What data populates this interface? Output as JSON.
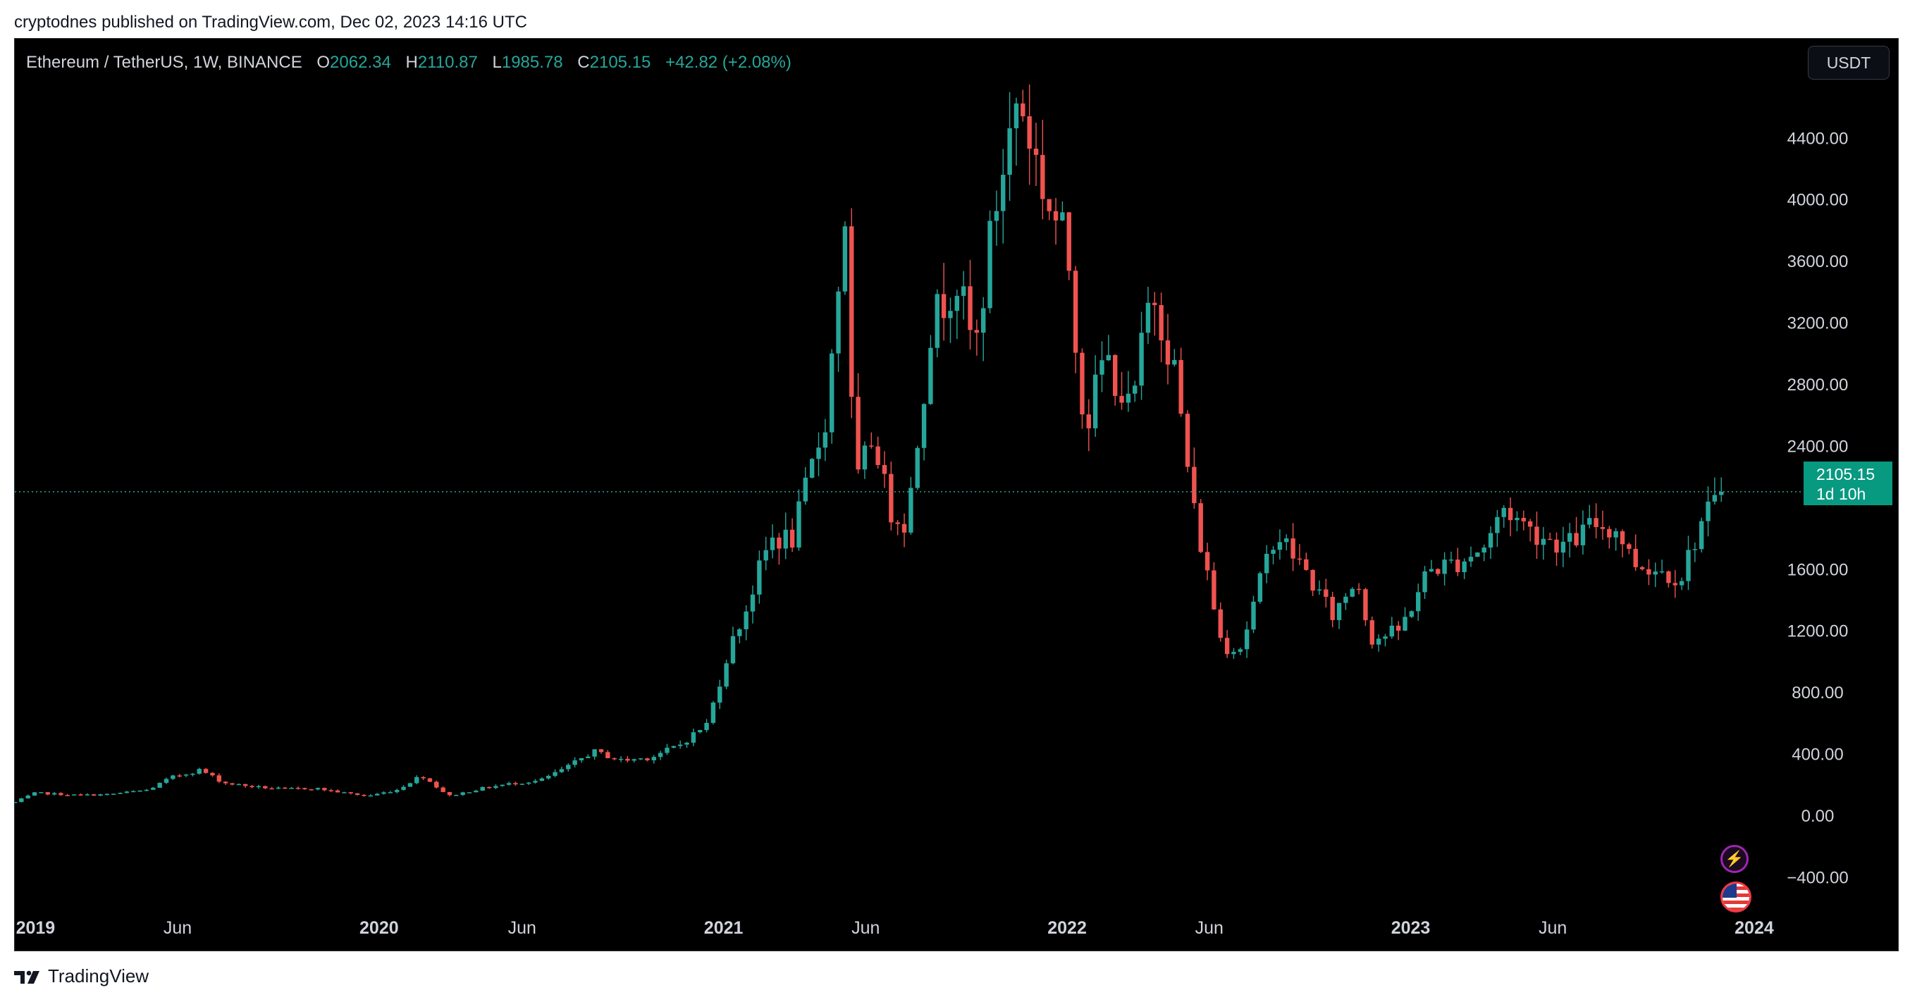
{
  "publish_line": "cryptodnes published on TradingView.com, Dec 02, 2023 14:16 UTC",
  "legend": {
    "symbol": "Ethereum / TetherUS, 1W, BINANCE",
    "o_label": "O",
    "o": "2062.34",
    "h_label": "H",
    "h": "2110.87",
    "l_label": "L",
    "l": "1985.78",
    "c_label": "C",
    "c": "2105.15",
    "change": "+42.82 (+2.08%)"
  },
  "currency_button": "USDT",
  "price_tag": {
    "price": "2105.15",
    "countdown": "1d 10h"
  },
  "brand": "TradingView",
  "colors": {
    "up": "#26a69a",
    "down": "#ef5350",
    "background": "#000000",
    "tag": "#089981"
  },
  "icons": [
    "lightning-icon",
    "us-flag-icon",
    "tradingview-logo-icon"
  ],
  "chart_data": {
    "type": "candlestick",
    "interval": "1W",
    "ylim": [
      -700,
      4900
    ],
    "y_ticks": [
      "4400.00",
      "4000.00",
      "3600.00",
      "3200.00",
      "2800.00",
      "2400.00",
      "1600.00",
      "1200.00",
      "800.00",
      "400.00",
      "0.00",
      "−400.00"
    ],
    "y_tick_values": [
      4400,
      4000,
      3600,
      3200,
      2800,
      2400,
      1600,
      1200,
      800,
      400,
      0,
      -400
    ],
    "x_labels": [
      {
        "text": "2019",
        "date": "2019-01-01",
        "bold": true
      },
      {
        "text": "Jun",
        "date": "2019-06-01",
        "bold": false
      },
      {
        "text": "2020",
        "date": "2020-01-01",
        "bold": true
      },
      {
        "text": "Jun",
        "date": "2020-06-01",
        "bold": false
      },
      {
        "text": "2021",
        "date": "2021-01-01",
        "bold": true
      },
      {
        "text": "Jun",
        "date": "2021-06-01",
        "bold": false
      },
      {
        "text": "2022",
        "date": "2022-01-01",
        "bold": true
      },
      {
        "text": "Jun",
        "date": "2022-06-01",
        "bold": false
      },
      {
        "text": "2023",
        "date": "2023-01-01",
        "bold": true
      },
      {
        "text": "Jun",
        "date": "2023-06-01",
        "bold": false
      },
      {
        "text": "2024",
        "date": "2024-01-01",
        "bold": true
      }
    ],
    "x_range": [
      "2018-12-10",
      "2024-01-10"
    ],
    "first_candle": "2018-12-10",
    "last_close": 2105.15,
    "close_anchors": [
      [
        "2018-12-10",
        90
      ],
      [
        "2019-01-01",
        150
      ],
      [
        "2019-02-15",
        135
      ],
      [
        "2019-03-20",
        140
      ],
      [
        "2019-05-01",
        170
      ],
      [
        "2019-05-25",
        250
      ],
      [
        "2019-06-25",
        300
      ],
      [
        "2019-07-20",
        215
      ],
      [
        "2019-08-20",
        190
      ],
      [
        "2019-09-20",
        175
      ],
      [
        "2019-10-25",
        180
      ],
      [
        "2019-11-25",
        150
      ],
      [
        "2019-12-20",
        130
      ],
      [
        "2020-01-20",
        170
      ],
      [
        "2020-02-15",
        265
      ],
      [
        "2020-03-15",
        130
      ],
      [
        "2020-04-20",
        180
      ],
      [
        "2020-05-20",
        210
      ],
      [
        "2020-06-20",
        230
      ],
      [
        "2020-07-20",
        320
      ],
      [
        "2020-08-15",
        420
      ],
      [
        "2020-09-15",
        360
      ],
      [
        "2020-10-15",
        380
      ],
      [
        "2020-11-15",
        460
      ],
      [
        "2020-12-15",
        600
      ],
      [
        "2021-01-05",
        1050
      ],
      [
        "2021-01-25",
        1350
      ],
      [
        "2021-02-20",
        1800
      ],
      [
        "2021-03-15",
        1800
      ],
      [
        "2021-04-20",
        2600
      ],
      [
        "2021-05-10",
        3900
      ],
      [
        "2021-05-20",
        2100
      ],
      [
        "2021-06-10",
        2500
      ],
      [
        "2021-06-25",
        2000
      ],
      [
        "2021-07-15",
        1900
      ],
      [
        "2021-08-10",
        3200
      ],
      [
        "2021-09-05",
        3500
      ],
      [
        "2021-09-25",
        3000
      ],
      [
        "2021-10-15",
        3900
      ],
      [
        "2021-11-10",
        4700
      ],
      [
        "2021-12-10",
        4000
      ],
      [
        "2022-01-01",
        3700
      ],
      [
        "2022-01-20",
        2500
      ],
      [
        "2022-02-10",
        3000
      ],
      [
        "2022-03-10",
        2600
      ],
      [
        "2022-04-01",
        3450
      ],
      [
        "2022-04-25",
        2900
      ],
      [
        "2022-05-15",
        2000
      ],
      [
        "2022-06-15",
        1100
      ],
      [
        "2022-07-05",
        1100
      ],
      [
        "2022-08-10",
        1850
      ],
      [
        "2022-09-10",
        1600
      ],
      [
        "2022-10-10",
        1300
      ],
      [
        "2022-11-05",
        1550
      ],
      [
        "2022-11-20",
        1150
      ],
      [
        "2022-12-20",
        1200
      ],
      [
        "2023-01-20",
        1600
      ],
      [
        "2023-02-20",
        1650
      ],
      [
        "2023-03-20",
        1750
      ],
      [
        "2023-04-10",
        2000
      ],
      [
        "2023-05-10",
        1850
      ],
      [
        "2023-06-15",
        1750
      ],
      [
        "2023-07-15",
        1900
      ],
      [
        "2023-08-10",
        1850
      ],
      [
        "2023-08-25",
        1650
      ],
      [
        "2023-09-20",
        1600
      ],
      [
        "2023-10-15",
        1550
      ],
      [
        "2023-11-05",
        1900
      ],
      [
        "2023-11-25",
        2060
      ],
      [
        "2023-12-02",
        2105.15
      ]
    ]
  }
}
